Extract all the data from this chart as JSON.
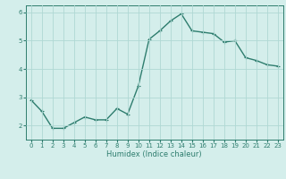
{
  "x": [
    0,
    1,
    2,
    3,
    4,
    5,
    6,
    7,
    8,
    9,
    10,
    11,
    12,
    13,
    14,
    15,
    16,
    17,
    18,
    19,
    20,
    21,
    22,
    23
  ],
  "y": [
    2.9,
    2.5,
    1.9,
    1.9,
    2.1,
    2.3,
    2.2,
    2.2,
    2.6,
    2.4,
    3.4,
    5.05,
    5.35,
    5.7,
    5.95,
    5.35,
    5.3,
    5.25,
    4.95,
    5.0,
    4.4,
    4.3,
    4.15,
    4.1
  ],
  "xlabel": "Humidex (Indice chaleur)",
  "ylim": [
    1.5,
    6.25
  ],
  "xlim": [
    -0.5,
    23.5
  ],
  "yticks": [
    2,
    3,
    4,
    5,
    6
  ],
  "xticks": [
    0,
    1,
    2,
    3,
    4,
    5,
    6,
    7,
    8,
    9,
    10,
    11,
    12,
    13,
    14,
    15,
    16,
    17,
    18,
    19,
    20,
    21,
    22,
    23
  ],
  "line_color": "#2e7d6e",
  "bg_color": "#d4eeeb",
  "grid_color": "#b0d8d4",
  "marker": "+",
  "linewidth": 1.0,
  "markersize": 3.5,
  "tick_fontsize": 5.0,
  "xlabel_fontsize": 6.0
}
